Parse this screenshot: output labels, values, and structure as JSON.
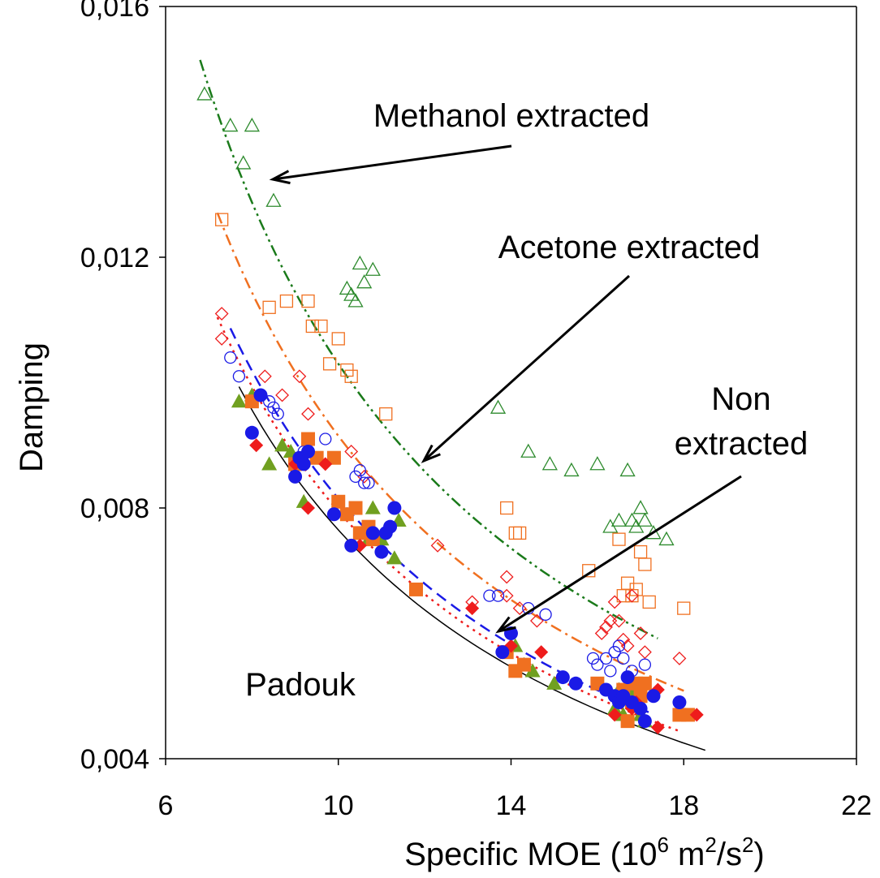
{
  "chart_data": {
    "type": "scatter",
    "xlabel_parts": {
      "base": "Specific MOE (10",
      "exp1": "6",
      "mid": " m",
      "exp2": "2",
      "mid2": "/s",
      "exp3": "2",
      "end": ")"
    },
    "ylabel": "Damping",
    "xlim": [
      6,
      22
    ],
    "ylim": [
      0.004,
      0.016
    ],
    "xticks": [
      6,
      10,
      14,
      18,
      22
    ],
    "yticks": [
      0.004,
      0.008,
      0.012,
      0.016
    ],
    "xtick_labels": [
      "6",
      "10",
      "14",
      "18",
      "22"
    ],
    "ytick_labels": [
      "0,004",
      "0,008",
      "0,012",
      "0,016"
    ],
    "grid": false,
    "annotations": {
      "methanol": "Methanol extracted",
      "acetone": "Acetone extracted",
      "non_line1": "Non",
      "non_line2": "extracted",
      "species": "Padouk"
    },
    "colors": {
      "green": "#70a020",
      "dark_green": "#1a7a1a",
      "orange": "#f07020",
      "red": "#ee1c1c",
      "blue": "#1a1ae6",
      "black": "#000000"
    },
    "series": [
      {
        "marker": "triangle-open",
        "color": "#2e8b2e",
        "points": [
          [
            6.9,
            0.0146
          ],
          [
            7.5,
            0.0141
          ],
          [
            7.8,
            0.0135
          ],
          [
            8.0,
            0.0141
          ],
          [
            8.5,
            0.0129
          ],
          [
            10.2,
            0.0115
          ],
          [
            10.3,
            0.0114
          ],
          [
            10.4,
            0.0113
          ],
          [
            10.5,
            0.0119
          ],
          [
            10.6,
            0.0116
          ],
          [
            10.8,
            0.0118
          ],
          [
            13.7,
            0.0096
          ],
          [
            14.4,
            0.0089
          ],
          [
            14.9,
            0.0087
          ],
          [
            15.4,
            0.0086
          ],
          [
            16.0,
            0.0087
          ],
          [
            16.3,
            0.0077
          ],
          [
            16.5,
            0.0078
          ],
          [
            16.7,
            0.0086
          ],
          [
            16.8,
            0.0078
          ],
          [
            16.9,
            0.0077
          ],
          [
            17.0,
            0.008
          ],
          [
            17.1,
            0.0078
          ],
          [
            17.3,
            0.0076
          ],
          [
            17.6,
            0.0075
          ]
        ]
      },
      {
        "marker": "square-open",
        "color": "#f07020",
        "points": [
          [
            7.3,
            0.0126
          ],
          [
            8.4,
            0.0112
          ],
          [
            8.8,
            0.0113
          ],
          [
            9.3,
            0.0113
          ],
          [
            9.4,
            0.0109
          ],
          [
            9.6,
            0.0109
          ],
          [
            9.8,
            0.0103
          ],
          [
            10.0,
            0.0107
          ],
          [
            10.2,
            0.0102
          ],
          [
            10.3,
            0.0101
          ],
          [
            11.1,
            0.0095
          ],
          [
            13.9,
            0.008
          ],
          [
            14.1,
            0.0076
          ],
          [
            14.2,
            0.0076
          ],
          [
            15.8,
            0.007
          ],
          [
            16.5,
            0.0075
          ],
          [
            16.6,
            0.0066
          ],
          [
            16.7,
            0.0068
          ],
          [
            16.8,
            0.0066
          ],
          [
            16.9,
            0.0067
          ],
          [
            17.0,
            0.0073
          ],
          [
            17.1,
            0.0071
          ],
          [
            17.2,
            0.0065
          ],
          [
            18.0,
            0.0064
          ]
        ]
      },
      {
        "marker": "diamond-open",
        "color": "#ee1c1c",
        "points": [
          [
            7.3,
            0.0111
          ],
          [
            7.3,
            0.0107
          ],
          [
            8.3,
            0.0101
          ],
          [
            8.7,
            0.0098
          ],
          [
            9.1,
            0.0101
          ],
          [
            9.3,
            0.0095
          ],
          [
            10.3,
            0.0089
          ],
          [
            10.6,
            0.0085
          ],
          [
            12.3,
            0.0074
          ],
          [
            13.1,
            0.0065
          ],
          [
            13.9,
            0.0069
          ],
          [
            13.9,
            0.0066
          ],
          [
            14.2,
            0.0064
          ],
          [
            14.6,
            0.0062
          ],
          [
            16.1,
            0.006
          ],
          [
            16.2,
            0.0061
          ],
          [
            16.3,
            0.0062
          ],
          [
            16.4,
            0.0065
          ],
          [
            16.5,
            0.0062
          ],
          [
            16.6,
            0.0059
          ],
          [
            16.7,
            0.0058
          ],
          [
            16.8,
            0.0066
          ],
          [
            17.0,
            0.006
          ],
          [
            17.1,
            0.0057
          ],
          [
            17.9,
            0.0056
          ]
        ]
      },
      {
        "marker": "circle-open",
        "color": "#1a1ae6",
        "points": [
          [
            7.5,
            0.0104
          ],
          [
            7.7,
            0.0101
          ],
          [
            8.4,
            0.0097
          ],
          [
            8.5,
            0.0096
          ],
          [
            8.6,
            0.0095
          ],
          [
            9.2,
            0.0089
          ],
          [
            9.7,
            0.0091
          ],
          [
            10.4,
            0.0085
          ],
          [
            10.5,
            0.0086
          ],
          [
            10.6,
            0.0084
          ],
          [
            10.7,
            0.0084
          ],
          [
            13.5,
            0.0066
          ],
          [
            13.7,
            0.0066
          ],
          [
            14.4,
            0.0064
          ],
          [
            14.8,
            0.0063
          ],
          [
            15.9,
            0.0056
          ],
          [
            16.0,
            0.0055
          ],
          [
            16.2,
            0.0056
          ],
          [
            16.3,
            0.0054
          ],
          [
            16.4,
            0.0057
          ],
          [
            16.5,
            0.0058
          ],
          [
            16.6,
            0.0056
          ],
          [
            16.8,
            0.0054
          ],
          [
            17.1,
            0.0055
          ]
        ]
      },
      {
        "marker": "triangle-filled",
        "color": "#70a020",
        "points": [
          [
            7.7,
            0.0097
          ],
          [
            8.0,
            0.0098
          ],
          [
            8.4,
            0.0087
          ],
          [
            8.7,
            0.009
          ],
          [
            8.9,
            0.0089
          ],
          [
            9.2,
            0.0081
          ],
          [
            10.7,
            0.0075
          ],
          [
            10.8,
            0.008
          ],
          [
            11.0,
            0.0075
          ],
          [
            11.3,
            0.0072
          ],
          [
            11.4,
            0.0078
          ],
          [
            14.1,
            0.0058
          ],
          [
            14.3,
            0.0055
          ],
          [
            14.5,
            0.0054
          ],
          [
            15.0,
            0.0052
          ],
          [
            16.4,
            0.0048
          ],
          [
            16.5,
            0.0051
          ],
          [
            16.6,
            0.0047
          ],
          [
            16.7,
            0.005
          ],
          [
            16.8,
            0.0051
          ],
          [
            16.9,
            0.0049
          ],
          [
            17.0,
            0.0047
          ],
          [
            17.1,
            0.0046
          ]
        ]
      },
      {
        "marker": "square-filled",
        "color": "#f07020",
        "points": [
          [
            8.0,
            0.0097
          ],
          [
            9.0,
            0.0087
          ],
          [
            9.3,
            0.0091
          ],
          [
            9.5,
            0.0088
          ],
          [
            9.9,
            0.0088
          ],
          [
            10.0,
            0.0081
          ],
          [
            10.2,
            0.0079
          ],
          [
            10.4,
            0.008
          ],
          [
            10.5,
            0.0076
          ],
          [
            10.7,
            0.0077
          ],
          [
            10.8,
            0.0075
          ],
          [
            11.8,
            0.0067
          ],
          [
            13.9,
            0.0057
          ],
          [
            14.1,
            0.0054
          ],
          [
            14.3,
            0.0055
          ],
          [
            16.0,
            0.0052
          ],
          [
            16.6,
            0.0051
          ],
          [
            16.7,
            0.0046
          ],
          [
            16.8,
            0.0049
          ],
          [
            16.9,
            0.0052
          ],
          [
            17.0,
            0.005
          ],
          [
            17.1,
            0.0052
          ],
          [
            17.9,
            0.0047
          ],
          [
            18.1,
            0.0047
          ]
        ]
      },
      {
        "marker": "diamond-filled",
        "color": "#ee1c1c",
        "points": [
          [
            8.1,
            0.009
          ],
          [
            9.0,
            0.0087
          ],
          [
            9.3,
            0.008
          ],
          [
            9.7,
            0.0087
          ],
          [
            10.5,
            0.0074
          ],
          [
            13.1,
            0.0064
          ],
          [
            14.0,
            0.0058
          ],
          [
            14.7,
            0.0057
          ],
          [
            16.4,
            0.0047
          ],
          [
            16.8,
            0.0048
          ],
          [
            16.9,
            0.0049
          ],
          [
            17.4,
            0.0051
          ],
          [
            17.4,
            0.0045
          ],
          [
            18.3,
            0.0047
          ]
        ]
      },
      {
        "marker": "circle-filled",
        "color": "#1a1ae6",
        "points": [
          [
            8.0,
            0.0092
          ],
          [
            8.2,
            0.0098
          ],
          [
            9.0,
            0.0085
          ],
          [
            9.1,
            0.0088
          ],
          [
            9.2,
            0.0087
          ],
          [
            9.3,
            0.0089
          ],
          [
            9.9,
            0.0079
          ],
          [
            10.3,
            0.0074
          ],
          [
            10.8,
            0.0076
          ],
          [
            11.0,
            0.0073
          ],
          [
            11.1,
            0.0076
          ],
          [
            11.2,
            0.0077
          ],
          [
            11.3,
            0.008
          ],
          [
            13.8,
            0.0057
          ],
          [
            14.0,
            0.006
          ],
          [
            15.2,
            0.0053
          ],
          [
            15.5,
            0.0052
          ],
          [
            16.2,
            0.0051
          ],
          [
            16.4,
            0.005
          ],
          [
            16.5,
            0.0049
          ],
          [
            16.6,
            0.005
          ],
          [
            16.7,
            0.0053
          ],
          [
            16.8,
            0.0049
          ],
          [
            17.0,
            0.0048
          ],
          [
            17.1,
            0.0046
          ],
          [
            17.3,
            0.005
          ],
          [
            17.9,
            0.0049
          ]
        ]
      }
    ],
    "trendlines": [
      {
        "color": "#1a7a1a",
        "style": "dash-dot-dot",
        "x": [
          6.8,
          17.4
        ],
        "a": 0.103,
        "b": -1.0
      },
      {
        "color": "#f07020",
        "style": "dash-dot",
        "x": [
          7.2,
          18.0
        ],
        "a": 0.0915,
        "b": -1.0
      },
      {
        "color": "#ee1c1c",
        "style": "dot",
        "x": [
          7.2,
          17.9
        ],
        "a": 0.0795,
        "b": -1.0
      },
      {
        "color": "#1a1ae6",
        "style": "dash",
        "x": [
          7.5,
          17.2
        ],
        "a": 0.0815,
        "b": -1.0
      },
      {
        "color": "#000000",
        "style": "solid",
        "x": [
          7.7,
          18.5
        ],
        "a": 0.0765,
        "b": -1.0
      }
    ]
  }
}
